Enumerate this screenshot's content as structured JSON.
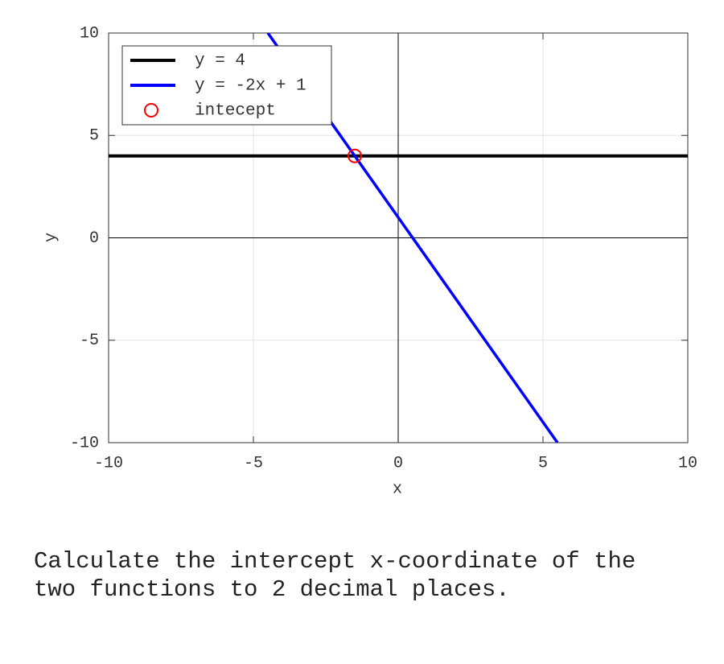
{
  "chart_data": {
    "type": "line",
    "xlabel": "x",
    "ylabel": "y",
    "xlim": [
      -10,
      10
    ],
    "ylim": [
      -10,
      10
    ],
    "xticks": [
      -10,
      -5,
      0,
      5,
      10
    ],
    "yticks": [
      -10,
      -5,
      0,
      5,
      10
    ],
    "grid": true,
    "legend": "upper left",
    "series": [
      {
        "name": "y = 4",
        "color": "#000000",
        "x": [
          -10,
          10
        ],
        "values": [
          4,
          4
        ]
      },
      {
        "name": "y = -2x + 1",
        "color": "#0000ff",
        "x": [
          -4.5,
          5.5
        ],
        "values": [
          10,
          -10
        ]
      },
      {
        "name": "intecept",
        "color": "#ff0000",
        "type": "scatter",
        "x": [
          -1.5
        ],
        "values": [
          4
        ]
      }
    ]
  },
  "question": "Calculate the intercept x-coordinate of the two functions to 2 decimal places."
}
